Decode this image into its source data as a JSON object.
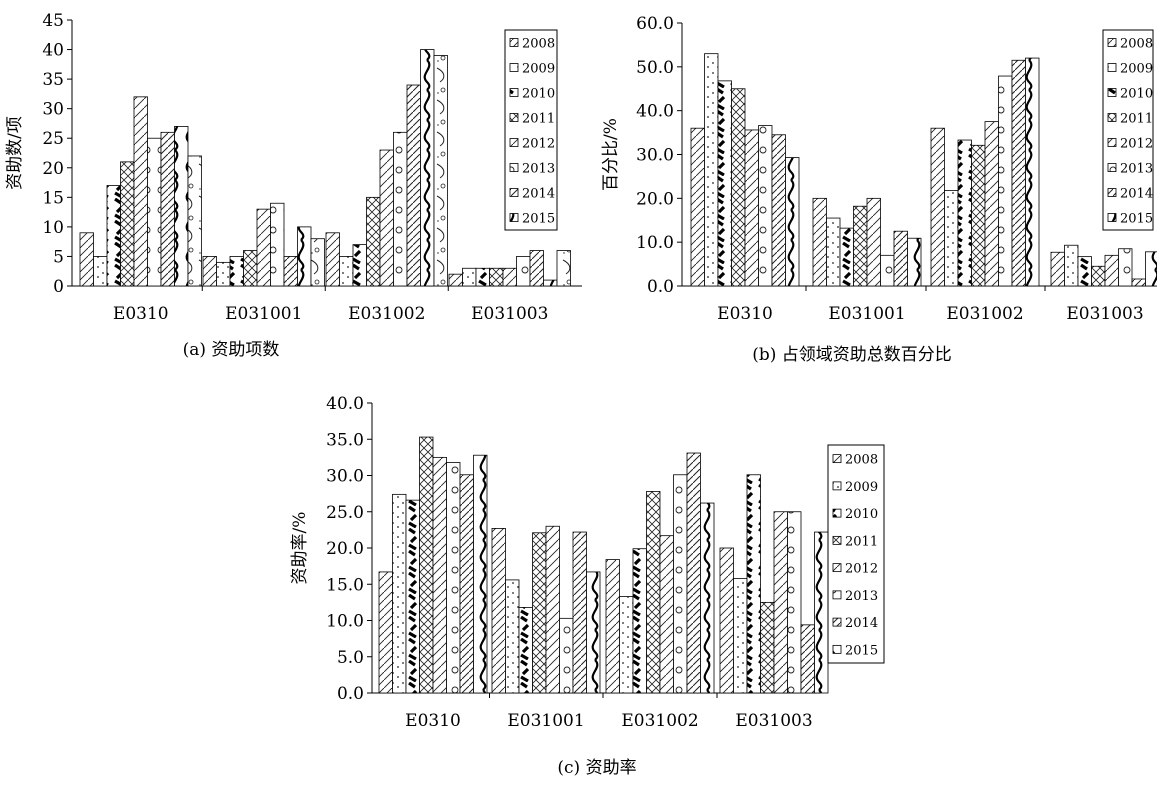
{
  "chart_data": [
    {
      "type": "bar",
      "caption": "(a) 资助项数",
      "ylabel": "资助数/项",
      "xlabel": "",
      "categories": [
        "E0310",
        "E031001",
        "E031002",
        "E031003"
      ],
      "ylim": [
        0,
        45
      ],
      "yticks": [
        "0",
        "5",
        "10",
        "15",
        "20",
        "25",
        "30",
        "35",
        "40",
        "45"
      ],
      "grid": false,
      "legend_position": "top-right",
      "series": [
        {
          "name": "2008",
          "values": [
            9,
            5,
            9,
            2
          ]
        },
        {
          "name": "2009",
          "values": [
            5,
            4,
            5,
            3
          ]
        },
        {
          "name": "2010",
          "values": [
            17,
            5,
            7,
            3
          ]
        },
        {
          "name": "2011",
          "values": [
            21,
            6,
            15,
            3
          ]
        },
        {
          "name": "2012",
          "values": [
            32,
            13,
            23,
            3
          ]
        },
        {
          "name": "2013",
          "values": [
            25,
            14,
            26,
            5
          ]
        },
        {
          "name": "2014",
          "values": [
            26,
            5,
            34,
            6
          ]
        },
        {
          "name": "2015",
          "values": [
            27,
            10,
            40,
            1
          ]
        },
        {
          "name": "",
          "values": [
            22,
            8,
            39,
            6
          ]
        }
      ]
    },
    {
      "type": "bar",
      "caption": "(b) 占领域资助总数百分比",
      "ylabel": "百分比/%",
      "xlabel": "",
      "categories": [
        "E0310",
        "E031001",
        "E031002",
        "E031003"
      ],
      "ylim": [
        0,
        60
      ],
      "yticks": [
        "0.0",
        "10.0",
        "20.0",
        "30.0",
        "40.0",
        "50.0",
        "60.0"
      ],
      "grid": false,
      "legend_position": "top-right",
      "series": [
        {
          "name": "2008",
          "values": [
            36,
            20,
            36,
            7.7
          ]
        },
        {
          "name": "2009",
          "values": [
            53,
            15.5,
            21.8,
            9.3
          ]
        },
        {
          "name": "2010",
          "values": [
            46.8,
            13.2,
            33.3,
            6.7
          ]
        },
        {
          "name": "2011",
          "values": [
            45,
            18.2,
            32.1,
            4.5
          ]
        },
        {
          "name": "2012",
          "values": [
            35.6,
            20,
            37.5,
            7
          ]
        },
        {
          "name": "2013",
          "values": [
            36.6,
            7,
            47.9,
            8.5
          ]
        },
        {
          "name": "2014",
          "values": [
            34.5,
            12.5,
            51.5,
            1.6
          ]
        },
        {
          "name": "2015",
          "values": [
            29.3,
            10.9,
            52,
            7.8
          ]
        }
      ]
    },
    {
      "type": "bar",
      "caption": "(c) 资助率",
      "ylabel": "资助率/%",
      "xlabel": "",
      "categories": [
        "E0310",
        "E031001",
        "E031002",
        "E031003"
      ],
      "ylim": [
        0,
        40
      ],
      "yticks": [
        "0.0",
        "5.0",
        "10.0",
        "15.0",
        "20.0",
        "25.0",
        "30.0",
        "35.0",
        "40.0"
      ],
      "grid": false,
      "legend_position": "right",
      "series": [
        {
          "name": "2008",
          "values": [
            16.7,
            22.7,
            18.4,
            20
          ]
        },
        {
          "name": "2009",
          "values": [
            27.4,
            15.6,
            13.3,
            15.8
          ]
        },
        {
          "name": "2010",
          "values": [
            26.6,
            11.8,
            19.9,
            30.1
          ]
        },
        {
          "name": "2011",
          "values": [
            35.3,
            22.1,
            27.8,
            12.5
          ]
        },
        {
          "name": "2012",
          "values": [
            32.5,
            23,
            21.7,
            25
          ]
        },
        {
          "name": "2013",
          "values": [
            31.8,
            10.3,
            30.1,
            25
          ]
        },
        {
          "name": "2014",
          "values": [
            30.1,
            22.2,
            33.1,
            9.4
          ]
        },
        {
          "name": "2015",
          "values": [
            32.8,
            16.7,
            26.2,
            22.2
          ]
        }
      ]
    }
  ]
}
